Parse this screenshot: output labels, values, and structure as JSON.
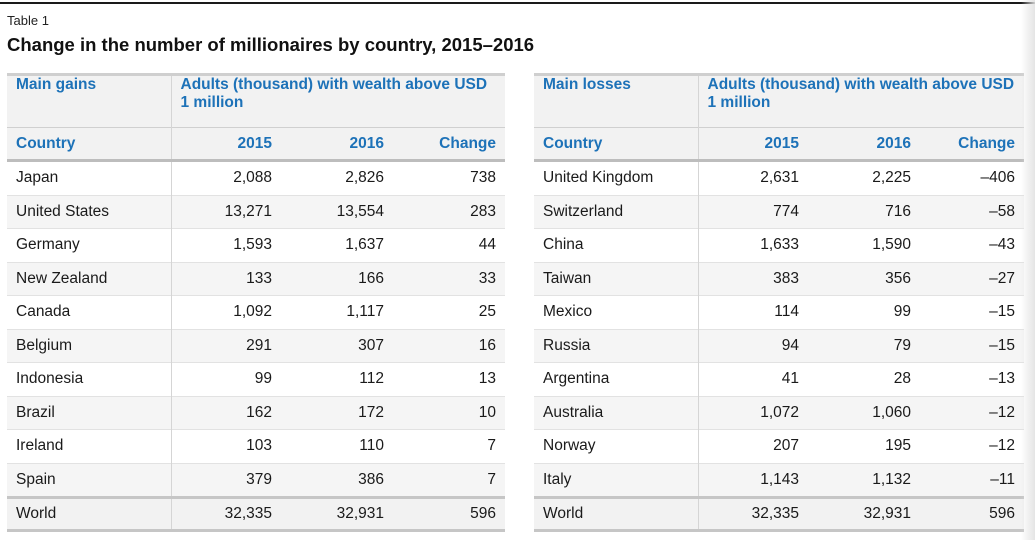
{
  "label": "Table 1",
  "title": "Change in the number of millionaires by country, 2015–2016",
  "gains": {
    "group_header": "Main gains",
    "span_header": "Adults (thousand) with wealth above USD 1 million",
    "columns": [
      "Country",
      "2015",
      "2016",
      "Change"
    ],
    "rows": [
      [
        "Japan",
        "2,088",
        "2,826",
        "738"
      ],
      [
        "United States",
        "13,271",
        "13,554",
        "283"
      ],
      [
        "Germany",
        "1,593",
        "1,637",
        "44"
      ],
      [
        "New Zealand",
        "133",
        "166",
        "33"
      ],
      [
        "Canada",
        "1,092",
        "1,117",
        "25"
      ],
      [
        "Belgium",
        "291",
        "307",
        "16"
      ],
      [
        "Indonesia",
        "99",
        "112",
        "13"
      ],
      [
        "Brazil",
        "162",
        "172",
        "10"
      ],
      [
        "Ireland",
        "103",
        "110",
        "7"
      ],
      [
        "Spain",
        "379",
        "386",
        "7"
      ]
    ],
    "total": [
      "World",
      "32,335",
      "32,931",
      "596"
    ]
  },
  "losses": {
    "group_header": "Main losses",
    "span_header": "Adults (thousand) with wealth above USD 1 million",
    "columns": [
      "Country",
      "2015",
      "2016",
      "Change"
    ],
    "rows": [
      [
        "United Kingdom",
        "2,631",
        "2,225",
        "–406"
      ],
      [
        "Switzerland",
        "774",
        "716",
        "–58"
      ],
      [
        "China",
        "1,633",
        "1,590",
        "–43"
      ],
      [
        "Taiwan",
        "383",
        "356",
        "–27"
      ],
      [
        "Mexico",
        "114",
        "99",
        "–15"
      ],
      [
        "Russia",
        "94",
        "79",
        "–15"
      ],
      [
        "Argentina",
        "41",
        "28",
        "–13"
      ],
      [
        "Australia",
        "1,072",
        "1,060",
        "–12"
      ],
      [
        "Norway",
        "207",
        "195",
        "–12"
      ],
      [
        "Italy",
        "1,143",
        "1,132",
        "–11"
      ]
    ],
    "total": [
      "World",
      "32,335",
      "32,931",
      "596"
    ]
  },
  "colors": {
    "header_blue": "#1d72b8",
    "header_bg": "#f2f2f2",
    "alt_row_bg": "#f5f5f5"
  }
}
